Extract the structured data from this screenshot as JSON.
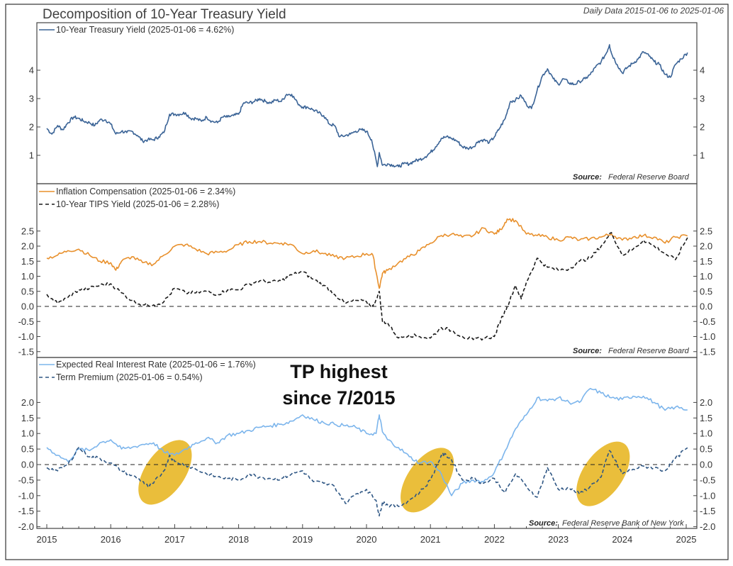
{
  "chart_data": {
    "type": "line",
    "title": "Decomposition of 10-Year Treasury Yield",
    "subtitle": "Daily Data 2015-01-06 to 2025-01-06",
    "x_range": [
      2015.0,
      2025.02
    ],
    "x_ticks": [
      "2015",
      "2016",
      "2017",
      "2018",
      "2019",
      "2020",
      "2021",
      "2022",
      "2023",
      "2024",
      "2025"
    ],
    "panels": [
      {
        "id": "panel-1",
        "ylim": [
          0,
          5
        ],
        "y_ticks": [
          "4",
          "3",
          "2",
          "1"
        ],
        "y_tick_values": [
          4,
          3,
          2,
          1
        ],
        "source_label": "Source:",
        "source": "Federal Reserve Board",
        "series": [
          {
            "name": "10-Year Treasury Yield (2025-01-06 = 4.62%)",
            "color": "#3a6396",
            "style": "solid",
            "x": [
              2015.0,
              2015.08,
              2015.17,
              2015.25,
              2015.33,
              2015.42,
              2015.5,
              2015.58,
              2015.67,
              2015.75,
              2015.83,
              2015.92,
              2016.0,
              2016.08,
              2016.17,
              2016.25,
              2016.33,
              2016.42,
              2016.5,
              2016.58,
              2016.67,
              2016.75,
              2016.83,
              2016.92,
              2017.0,
              2017.08,
              2017.17,
              2017.25,
              2017.33,
              2017.42,
              2017.5,
              2017.58,
              2017.67,
              2017.75,
              2017.83,
              2017.92,
              2018.0,
              2018.08,
              2018.17,
              2018.25,
              2018.33,
              2018.42,
              2018.5,
              2018.58,
              2018.67,
              2018.75,
              2018.83,
              2018.92,
              2019.0,
              2019.08,
              2019.17,
              2019.25,
              2019.33,
              2019.42,
              2019.5,
              2019.58,
              2019.67,
              2019.75,
              2019.83,
              2019.92,
              2020.0,
              2020.08,
              2020.17,
              2020.2,
              2020.25,
              2020.33,
              2020.42,
              2020.5,
              2020.58,
              2020.67,
              2020.75,
              2020.83,
              2020.92,
              2021.0,
              2021.08,
              2021.17,
              2021.25,
              2021.33,
              2021.42,
              2021.5,
              2021.58,
              2021.67,
              2021.75,
              2021.83,
              2021.92,
              2022.0,
              2022.08,
              2022.17,
              2022.25,
              2022.33,
              2022.42,
              2022.5,
              2022.58,
              2022.67,
              2022.75,
              2022.83,
              2022.92,
              2023.0,
              2023.08,
              2023.17,
              2023.25,
              2023.33,
              2023.42,
              2023.5,
              2023.58,
              2023.67,
              2023.75,
              2023.8,
              2023.83,
              2023.92,
              2024.0,
              2024.08,
              2024.17,
              2024.25,
              2024.33,
              2024.42,
              2024.5,
              2024.58,
              2024.67,
              2024.75,
              2024.83,
              2024.92,
              2025.02
            ],
            "y": [
              1.95,
              1.75,
              2.05,
              1.9,
              2.15,
              2.35,
              2.3,
              2.2,
              2.15,
              2.05,
              2.25,
              2.25,
              2.1,
              1.75,
              1.85,
              1.8,
              1.85,
              1.7,
              1.5,
              1.55,
              1.55,
              1.65,
              1.8,
              2.45,
              2.45,
              2.45,
              2.5,
              2.3,
              2.3,
              2.2,
              2.35,
              2.2,
              2.15,
              2.35,
              2.35,
              2.4,
              2.45,
              2.85,
              2.85,
              2.9,
              3.0,
              2.9,
              2.85,
              2.95,
              2.9,
              3.15,
              3.15,
              2.85,
              2.7,
              2.7,
              2.6,
              2.5,
              2.4,
              2.1,
              2.05,
              1.65,
              1.7,
              1.75,
              1.85,
              1.9,
              1.85,
              1.55,
              0.6,
              1.1,
              0.65,
              0.7,
              0.65,
              0.6,
              0.7,
              0.7,
              0.8,
              0.85,
              0.95,
              1.1,
              1.3,
              1.6,
              1.65,
              1.6,
              1.5,
              1.3,
              1.25,
              1.3,
              1.5,
              1.55,
              1.45,
              1.65,
              1.95,
              2.3,
              2.9,
              2.95,
              3.1,
              2.8,
              2.65,
              3.3,
              3.8,
              4.05,
              3.7,
              3.5,
              3.7,
              3.55,
              3.5,
              3.6,
              3.7,
              3.85,
              4.1,
              4.3,
              4.6,
              4.9,
              4.6,
              4.2,
              3.9,
              4.1,
              4.25,
              4.4,
              4.65,
              4.5,
              4.3,
              4.2,
              3.85,
              3.75,
              4.2,
              4.4,
              4.62
            ]
          }
        ]
      },
      {
        "id": "panel-2",
        "ylim": [
          -1.65,
          3.95
        ],
        "y_ticks": [
          "2.5",
          "2.0",
          "1.5",
          "1.0",
          "0.5",
          "0.0",
          "-0.5",
          "-1.0",
          "-1.5"
        ],
        "y_tick_values": [
          2.5,
          2.0,
          1.5,
          1.0,
          0.5,
          0.0,
          -0.5,
          -1.0,
          -1.5
        ],
        "zero_line": true,
        "source_label": "Source:",
        "source": "Federal Reserve Board",
        "series": [
          {
            "name": "Inflation Compensation (2025-01-06 = 2.34%)",
            "color": "#e8902c",
            "style": "solid",
            "x": [
              2015.0,
              2015.17,
              2015.33,
              2015.5,
              2015.67,
              2015.83,
              2016.0,
              2016.08,
              2016.17,
              2016.33,
              2016.5,
              2016.67,
              2016.83,
              2017.0,
              2017.17,
              2017.33,
              2017.5,
              2017.67,
              2017.83,
              2018.0,
              2018.17,
              2018.33,
              2018.5,
              2018.67,
              2018.83,
              2019.0,
              2019.17,
              2019.33,
              2019.5,
              2019.67,
              2019.83,
              2020.0,
              2020.1,
              2020.2,
              2020.25,
              2020.33,
              2020.5,
              2020.67,
              2020.83,
              2021.0,
              2021.17,
              2021.33,
              2021.5,
              2021.67,
              2021.83,
              2022.0,
              2022.1,
              2022.2,
              2022.33,
              2022.5,
              2022.67,
              2022.83,
              2023.0,
              2023.17,
              2023.33,
              2023.5,
              2023.67,
              2023.83,
              2024.0,
              2024.17,
              2024.33,
              2024.5,
              2024.67,
              2024.83,
              2025.02
            ],
            "y": [
              1.6,
              1.7,
              1.85,
              1.9,
              1.7,
              1.5,
              1.45,
              1.2,
              1.5,
              1.65,
              1.45,
              1.4,
              1.7,
              2.0,
              2.05,
              1.9,
              1.75,
              1.8,
              1.85,
              2.05,
              2.15,
              2.15,
              2.1,
              2.1,
              2.05,
              1.75,
              1.85,
              1.75,
              1.65,
              1.6,
              1.65,
              1.75,
              1.7,
              0.6,
              1.1,
              1.2,
              1.45,
              1.65,
              1.85,
              2.1,
              2.35,
              2.4,
              2.3,
              2.35,
              2.6,
              2.4,
              2.55,
              2.9,
              2.85,
              2.4,
              2.35,
              2.3,
              2.2,
              2.3,
              2.2,
              2.25,
              2.3,
              2.4,
              2.2,
              2.3,
              2.35,
              2.3,
              2.1,
              2.3,
              2.34
            ]
          },
          {
            "name": "10-Year TIPS Yield (2025-01-06 = 2.28%)",
            "color": "#1a1a1a",
            "style": "dashed",
            "x": [
              2015.0,
              2015.17,
              2015.33,
              2015.5,
              2015.67,
              2015.83,
              2016.0,
              2016.17,
              2016.33,
              2016.5,
              2016.67,
              2016.83,
              2017.0,
              2017.17,
              2017.33,
              2017.5,
              2017.67,
              2017.83,
              2018.0,
              2018.17,
              2018.33,
              2018.5,
              2018.67,
              2018.83,
              2019.0,
              2019.17,
              2019.33,
              2019.5,
              2019.67,
              2019.83,
              2020.0,
              2020.1,
              2020.2,
              2020.25,
              2020.33,
              2020.5,
              2020.67,
              2020.83,
              2021.0,
              2021.17,
              2021.33,
              2021.5,
              2021.67,
              2021.83,
              2022.0,
              2022.1,
              2022.2,
              2022.33,
              2022.42,
              2022.5,
              2022.67,
              2022.83,
              2023.0,
              2023.17,
              2023.33,
              2023.5,
              2023.67,
              2023.83,
              2024.0,
              2024.17,
              2024.33,
              2024.5,
              2024.67,
              2024.83,
              2025.02
            ],
            "y": [
              0.4,
              0.1,
              0.3,
              0.55,
              0.6,
              0.7,
              0.75,
              0.45,
              0.2,
              0.05,
              0.05,
              0.15,
              0.6,
              0.45,
              0.45,
              0.5,
              0.4,
              0.55,
              0.55,
              0.75,
              0.85,
              0.8,
              0.85,
              1.05,
              1.15,
              0.9,
              0.7,
              0.4,
              0.1,
              0.2,
              0.15,
              0.0,
              0.5,
              -0.5,
              -0.55,
              -1.05,
              -0.95,
              -1.0,
              -1.05,
              -0.7,
              -0.8,
              -1.0,
              -1.1,
              -1.05,
              -1.0,
              -0.45,
              0.0,
              0.7,
              0.25,
              0.8,
              1.6,
              1.3,
              1.2,
              1.25,
              1.5,
              1.6,
              2.0,
              2.45,
              1.7,
              1.9,
              2.2,
              2.0,
              1.75,
              1.55,
              2.28
            ]
          }
        ]
      },
      {
        "id": "panel-3",
        "ylim": [
          -2.05,
          4.4
        ],
        "y_ticks": [
          "2.0",
          "1.5",
          "1.0",
          "0.5",
          "0.0",
          "-0.5",
          "-1.0",
          "-1.5",
          "-2.0"
        ],
        "y_tick_values": [
          2.0,
          1.5,
          1.0,
          0.5,
          0.0,
          -0.5,
          -1.0,
          -1.5,
          -2.0
        ],
        "zero_line": true,
        "source_label": "Source:",
        "source": "Federal Reserve Bank of New York",
        "annotation": [
          "TP highest",
          "since 7/2015"
        ],
        "highlight_color": "#e6b319",
        "highlights": [
          {
            "x_center": 2016.85,
            "y_center": -0.25,
            "label": "2016-2017 term premium rise"
          },
          {
            "x_center": 2020.95,
            "y_center": -0.5,
            "label": "2020-2021 term premium rise"
          },
          {
            "x_center": 2023.7,
            "y_center": -0.3,
            "label": "2023 term premium rise"
          }
        ],
        "series": [
          {
            "name": "Expected Real Interest Rate (2025-01-06 = 1.76%)",
            "color": "#7cb5ec",
            "style": "solid",
            "x": [
              2015.0,
              2015.17,
              2015.33,
              2015.5,
              2015.67,
              2015.83,
              2016.0,
              2016.17,
              2016.33,
              2016.5,
              2016.67,
              2016.83,
              2017.0,
              2017.17,
              2017.33,
              2017.5,
              2017.67,
              2017.83,
              2018.0,
              2018.17,
              2018.33,
              2018.5,
              2018.67,
              2018.83,
              2019.0,
              2019.17,
              2019.33,
              2019.5,
              2019.67,
              2019.83,
              2020.0,
              2020.15,
              2020.2,
              2020.25,
              2020.33,
              2020.5,
              2020.67,
              2020.83,
              2021.0,
              2021.17,
              2021.33,
              2021.5,
              2021.67,
              2021.83,
              2022.0,
              2022.17,
              2022.33,
              2022.5,
              2022.67,
              2022.83,
              2023.0,
              2023.17,
              2023.33,
              2023.5,
              2023.67,
              2023.83,
              2024.0,
              2024.17,
              2024.33,
              2024.5,
              2024.67,
              2024.83,
              2025.02
            ],
            "y": [
              0.55,
              0.3,
              0.1,
              0.5,
              0.45,
              0.7,
              0.8,
              0.5,
              0.55,
              0.65,
              0.7,
              0.4,
              0.3,
              0.5,
              0.7,
              0.85,
              0.7,
              0.95,
              1.0,
              1.1,
              1.2,
              1.25,
              1.3,
              1.4,
              1.6,
              1.45,
              1.35,
              1.3,
              1.25,
              1.2,
              1.0,
              1.0,
              1.6,
              1.05,
              0.8,
              0.55,
              0.25,
              0.05,
              0.1,
              -0.3,
              -1.0,
              -0.6,
              -0.5,
              -0.55,
              -0.25,
              0.45,
              1.15,
              1.6,
              2.15,
              2.05,
              2.15,
              2.0,
              2.0,
              2.45,
              2.3,
              2.15,
              2.1,
              2.2,
              2.2,
              2.0,
              1.75,
              1.85,
              1.76
            ]
          },
          {
            "name": "Term Premium (2025-01-06 = 0.54%)",
            "color": "#2e5684",
            "style": "dashed",
            "x": [
              2015.0,
              2015.17,
              2015.33,
              2015.5,
              2015.67,
              2015.83,
              2016.0,
              2016.17,
              2016.33,
              2016.5,
              2016.58,
              2016.67,
              2016.83,
              2016.92,
              2017.0,
              2017.17,
              2017.33,
              2017.5,
              2017.67,
              2017.83,
              2018.0,
              2018.17,
              2018.33,
              2018.5,
              2018.67,
              2018.83,
              2019.0,
              2019.17,
              2019.33,
              2019.5,
              2019.67,
              2019.83,
              2020.0,
              2020.15,
              2020.2,
              2020.25,
              2020.33,
              2020.5,
              2020.67,
              2020.83,
              2021.0,
              2021.17,
              2021.25,
              2021.33,
              2021.5,
              2021.67,
              2021.83,
              2022.0,
              2022.17,
              2022.33,
              2022.5,
              2022.67,
              2022.83,
              2023.0,
              2023.17,
              2023.33,
              2023.5,
              2023.67,
              2023.8,
              2023.92,
              2024.0,
              2024.17,
              2024.33,
              2024.5,
              2024.67,
              2024.83,
              2025.02
            ],
            "y": [
              -0.1,
              -0.2,
              0.0,
              0.55,
              0.25,
              0.2,
              0.05,
              -0.2,
              -0.35,
              -0.55,
              -0.7,
              -0.6,
              -0.2,
              0.3,
              0.1,
              0.0,
              -0.15,
              -0.3,
              -0.4,
              -0.45,
              -0.5,
              -0.3,
              -0.4,
              -0.45,
              -0.45,
              -0.3,
              -0.2,
              -0.55,
              -0.6,
              -0.7,
              -1.25,
              -0.95,
              -0.8,
              -1.15,
              -1.65,
              -1.2,
              -1.3,
              -1.35,
              -1.15,
              -0.9,
              -0.5,
              0.3,
              0.3,
              0.15,
              -0.5,
              -0.45,
              -0.6,
              -0.45,
              -0.9,
              -0.3,
              -0.7,
              -1.05,
              -0.1,
              -0.8,
              -0.75,
              -0.95,
              -0.7,
              -0.4,
              0.45,
              0.0,
              -0.3,
              -0.15,
              -0.05,
              -0.1,
              -0.2,
              0.2,
              0.54
            ]
          }
        ]
      }
    ]
  }
}
